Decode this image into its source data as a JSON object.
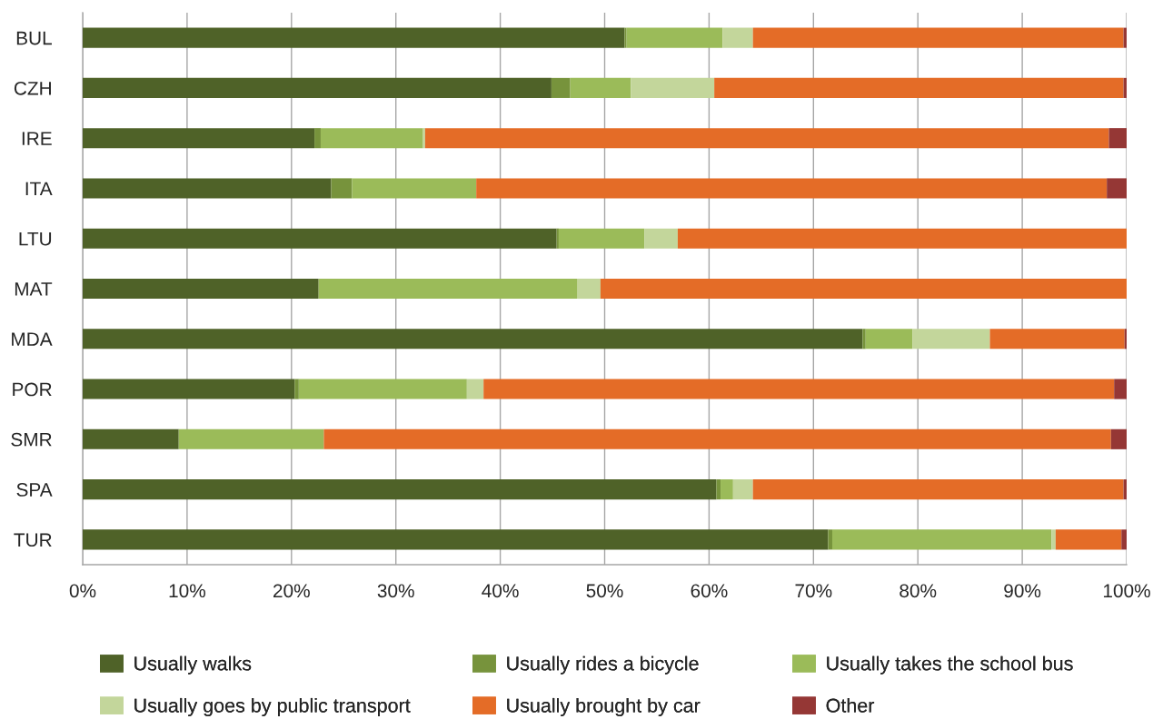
{
  "chart_data": {
    "type": "bar",
    "orientation": "horizontal",
    "stacked": true,
    "categories": [
      "BUL",
      "CZH",
      "IRE",
      "ITA",
      "LTU",
      "MAT",
      "MDA",
      "POR",
      "SMR",
      "SPA",
      "TUR"
    ],
    "series": [
      {
        "name": "Usually walks",
        "color": "#4f6228",
        "values": [
          51.9,
          44.9,
          22.2,
          23.8,
          45.4,
          22.6,
          74.7,
          20.3,
          9.2,
          60.7,
          71.4
        ]
      },
      {
        "name": "Usually rides a bicycle",
        "color": "#77933c",
        "values": [
          0.2,
          1.8,
          0.6,
          2.0,
          0.2,
          null,
          0.3,
          0.4,
          null,
          0.4,
          0.4
        ]
      },
      {
        "name": "Usually takes the school bus",
        "color": "#9bbb59",
        "values": [
          9.2,
          5.8,
          9.8,
          11.9,
          8.2,
          24.8,
          4.5,
          16.1,
          13.9,
          1.2,
          21.0
        ]
      },
      {
        "name": "Usually goes by public transport",
        "color": "#c3d69b",
        "values": [
          2.9,
          8.0,
          0.2,
          null,
          3.2,
          2.2,
          7.4,
          1.6,
          null,
          1.9,
          0.4
        ]
      },
      {
        "name": "Usually brought by car",
        "color": "#e46c27",
        "values": [
          35.5,
          39.2,
          65.5,
          60.4,
          43.0,
          50.4,
          12.9,
          60.4,
          75.4,
          35.5,
          6.3
        ]
      },
      {
        "name": "Other",
        "color": "#953735",
        "values": [
          0.3,
          0.3,
          1.7,
          1.9,
          null,
          null,
          0.2,
          1.2,
          1.5,
          0.3,
          0.5
        ]
      }
    ],
    "xlim": [
      0,
      100
    ],
    "xticks": [
      {
        "value": 0,
        "label": "0%"
      },
      {
        "value": 10,
        "label": "10%"
      },
      {
        "value": 20,
        "label": "20%"
      },
      {
        "value": 30,
        "label": "30%"
      },
      {
        "value": 40,
        "label": "40%"
      },
      {
        "value": 50,
        "label": "50%"
      },
      {
        "value": 60,
        "label": "60%"
      },
      {
        "value": 70,
        "label": "70%"
      },
      {
        "value": 80,
        "label": "80%"
      },
      {
        "value": 90,
        "label": "90%"
      },
      {
        "value": 100,
        "label": "100%"
      }
    ],
    "grid": "x",
    "legend": "bottom"
  }
}
